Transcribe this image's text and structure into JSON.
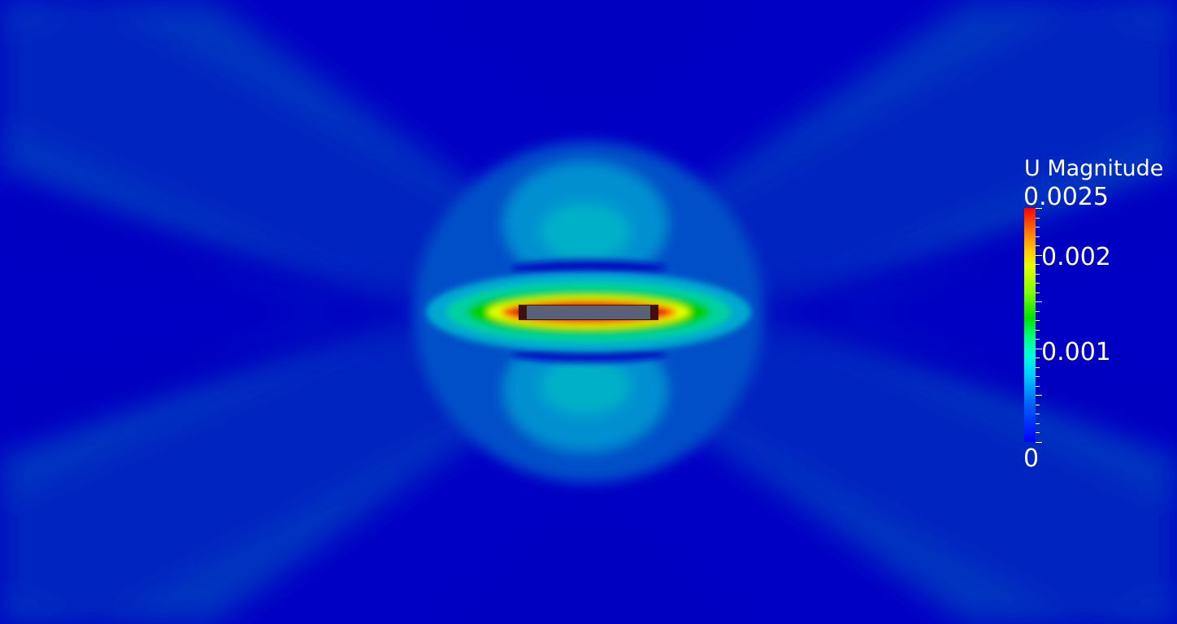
{
  "legend": {
    "title": "U Magnitude",
    "labels": {
      "max": "0.0025",
      "high": "0.002",
      "mid": "0.001",
      "min": "0"
    }
  },
  "colors": {
    "background_low": "#0000c4",
    "band_1": "#0020c0",
    "band_2": "#0035c0",
    "band_3": "#0050c8",
    "teal": "#00a0d0",
    "cyan": "#00c0c8",
    "green": "#00d000",
    "yellow": "#e0ff00",
    "orange": "#ff6000",
    "red": "#e00000",
    "body": "#5a6078",
    "body_edge": "#401010"
  }
}
